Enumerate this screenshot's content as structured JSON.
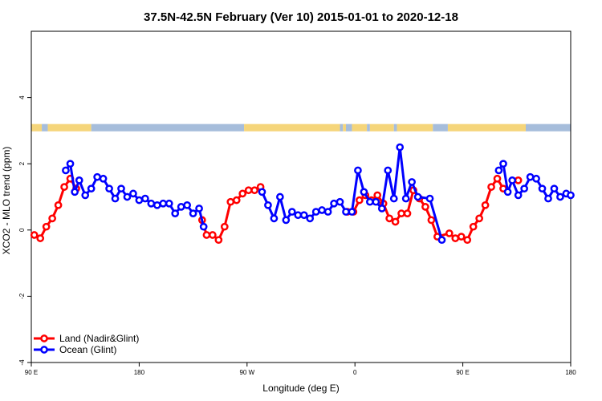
{
  "chart_data": {
    "type": "line",
    "title": "37.5N-42.5N February (Ver 10)   2015-01-01 to 2020-12-18",
    "xlabel": "Longitude (deg E)",
    "ylabel": "XCO2 - MLO trend (ppm)",
    "xlim": [
      90,
      450
    ],
    "ylim": [
      -4,
      6
    ],
    "x_ticks": [
      {
        "value": 90,
        "label": "90 E"
      },
      {
        "value": 162,
        "label": "180"
      },
      {
        "value": 234,
        "label": "90 W"
      },
      {
        "value": 306,
        "label": "0"
      },
      {
        "value": 378,
        "label": "90 E"
      },
      {
        "value": 450,
        "label": "180"
      }
    ],
    "y_ticks": [
      {
        "value": -4,
        "label": "-4"
      },
      {
        "value": -2,
        "label": "-2"
      },
      {
        "value": 0,
        "label": "0"
      },
      {
        "value": 2,
        "label": "2"
      },
      {
        "value": 4,
        "label": "4"
      }
    ],
    "legend_position": "bottom-left",
    "land_ocean_band": {
      "y_range": [
        2.98,
        3.2
      ],
      "land_color": "#f5d57a",
      "ocean_color": "#a6bddb",
      "segments": [
        {
          "from": 90,
          "to": 97,
          "type": "land"
        },
        {
          "from": 97,
          "to": 101,
          "type": "ocean"
        },
        {
          "from": 101,
          "to": 130,
          "type": "land"
        },
        {
          "from": 130,
          "to": 232,
          "type": "ocean"
        },
        {
          "from": 232,
          "to": 296,
          "type": "land"
        },
        {
          "from": 296,
          "to": 298,
          "type": "ocean"
        },
        {
          "from": 298,
          "to": 300,
          "type": "land"
        },
        {
          "from": 300,
          "to": 304,
          "type": "ocean"
        },
        {
          "from": 304,
          "to": 314,
          "type": "land"
        },
        {
          "from": 314,
          "to": 316,
          "type": "ocean"
        },
        {
          "from": 316,
          "to": 332,
          "type": "land"
        },
        {
          "from": 332,
          "to": 334,
          "type": "ocean"
        },
        {
          "from": 334,
          "to": 358,
          "type": "land"
        },
        {
          "from": 358,
          "to": 368,
          "type": "ocean"
        },
        {
          "from": 368,
          "to": 420,
          "type": "land"
        },
        {
          "from": 420,
          "to": 450,
          "type": "ocean"
        }
      ]
    },
    "series": [
      {
        "name": "Land (Nadir&Glint)",
        "color": "#ff0000",
        "points": [
          [
            92,
            -0.15
          ],
          [
            96,
            -0.25
          ],
          [
            100,
            0.1
          ],
          [
            104,
            0.35
          ],
          [
            108,
            0.75
          ],
          [
            112,
            1.3
          ],
          [
            116,
            1.55
          ],
          [
            120,
            1.25
          ],
          [
            204,
            0.3
          ],
          [
            207,
            -0.15
          ],
          [
            211,
            -0.15
          ],
          [
            215,
            -0.3
          ],
          [
            219,
            0.1
          ],
          [
            223,
            0.85
          ],
          [
            227,
            0.9
          ],
          [
            231,
            1.1
          ],
          [
            235,
            1.2
          ],
          [
            239,
            1.2
          ],
          [
            243,
            1.3
          ],
          [
            301,
            0.55
          ],
          [
            305,
            0.55
          ],
          [
            309,
            0.9
          ],
          [
            313,
            1.05
          ],
          [
            317,
            0.9
          ],
          [
            321,
            1.05
          ],
          [
            325,
            0.8
          ],
          [
            329,
            0.35
          ],
          [
            333,
            0.25
          ],
          [
            337,
            0.5
          ],
          [
            341,
            0.5
          ],
          [
            345,
            1.2
          ],
          [
            349,
            0.95
          ],
          [
            353,
            0.7
          ],
          [
            357,
            0.3
          ],
          [
            361,
            -0.2
          ],
          [
            369,
            -0.1
          ],
          [
            373,
            -0.25
          ],
          [
            377,
            -0.2
          ],
          [
            381,
            -0.3
          ],
          [
            385,
            0.1
          ],
          [
            389,
            0.35
          ],
          [
            393,
            0.75
          ],
          [
            397,
            1.3
          ],
          [
            401,
            1.55
          ],
          [
            405,
            1.25
          ],
          [
            415,
            1.5
          ]
        ]
      },
      {
        "name": "Ocean (Glint)",
        "color": "#0000ff",
        "points": [
          [
            113,
            1.8
          ],
          [
            116,
            2.0
          ],
          [
            119,
            1.15
          ],
          [
            122,
            1.5
          ],
          [
            126,
            1.05
          ],
          [
            130,
            1.25
          ],
          [
            134,
            1.6
          ],
          [
            138,
            1.55
          ],
          [
            142,
            1.25
          ],
          [
            146,
            0.95
          ],
          [
            150,
            1.25
          ],
          [
            154,
            1.0
          ],
          [
            158,
            1.1
          ],
          [
            162,
            0.9
          ],
          [
            166,
            0.95
          ],
          [
            170,
            0.8
          ],
          [
            174,
            0.75
          ],
          [
            178,
            0.8
          ],
          [
            182,
            0.8
          ],
          [
            186,
            0.5
          ],
          [
            190,
            0.7
          ],
          [
            194,
            0.75
          ],
          [
            198,
            0.5
          ],
          [
            202,
            0.65
          ],
          [
            205,
            0.1
          ],
          [
            244,
            1.15
          ],
          [
            248,
            0.75
          ],
          [
            252,
            0.35
          ],
          [
            256,
            1.0
          ],
          [
            260,
            0.3
          ],
          [
            264,
            0.55
          ],
          [
            268,
            0.45
          ],
          [
            272,
            0.45
          ],
          [
            276,
            0.35
          ],
          [
            280,
            0.55
          ],
          [
            284,
            0.6
          ],
          [
            288,
            0.55
          ],
          [
            292,
            0.8
          ],
          [
            296,
            0.85
          ],
          [
            300,
            0.55
          ],
          [
            304,
            0.55
          ],
          [
            308,
            1.8
          ],
          [
            312,
            1.15
          ],
          [
            316,
            0.85
          ],
          [
            320,
            0.85
          ],
          [
            324,
            0.65
          ],
          [
            328,
            1.8
          ],
          [
            332,
            0.95
          ],
          [
            336,
            2.5
          ],
          [
            340,
            0.95
          ],
          [
            344,
            1.45
          ],
          [
            348,
            1.0
          ],
          [
            356,
            0.95
          ],
          [
            364,
            -0.3
          ],
          [
            402,
            1.8
          ],
          [
            405,
            2.0
          ],
          [
            408,
            1.15
          ],
          [
            411,
            1.5
          ],
          [
            415,
            1.05
          ],
          [
            419,
            1.25
          ],
          [
            423,
            1.6
          ],
          [
            427,
            1.55
          ],
          [
            431,
            1.25
          ],
          [
            435,
            0.95
          ],
          [
            439,
            1.25
          ],
          [
            443,
            1.0
          ],
          [
            447,
            1.1
          ],
          [
            450,
            1.05
          ]
        ]
      }
    ]
  }
}
